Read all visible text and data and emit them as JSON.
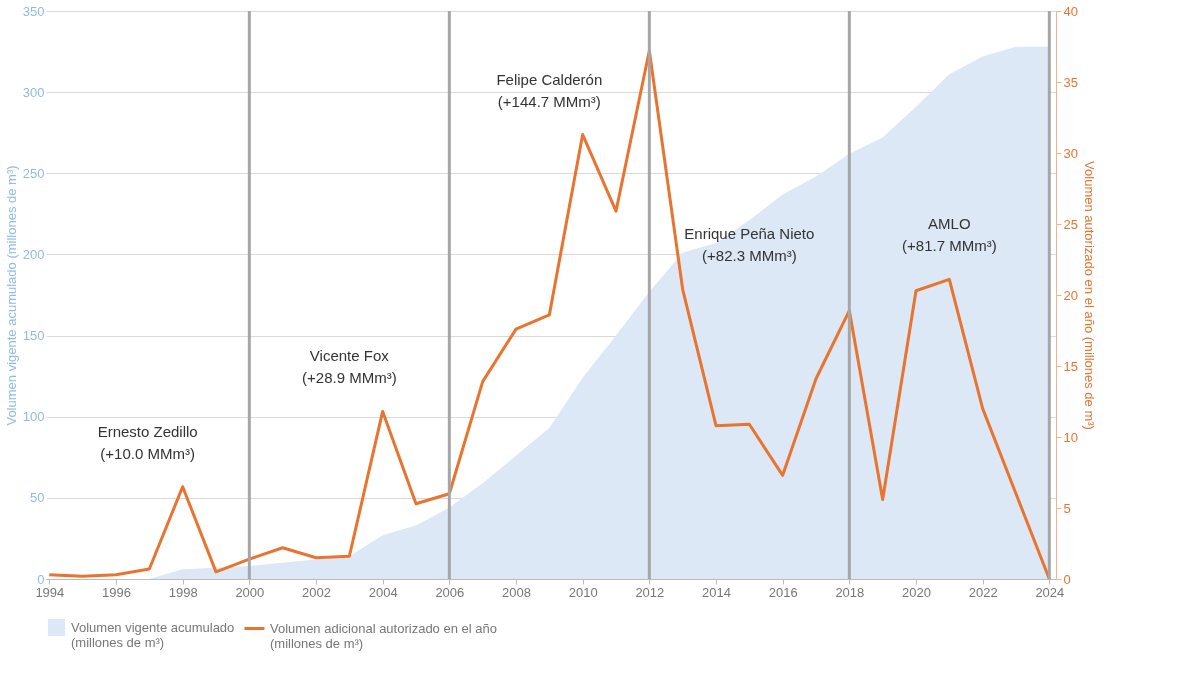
{
  "chart_data": {
    "type": "area",
    "x": [
      1994,
      1995,
      1996,
      1997,
      1998,
      1999,
      2000,
      2001,
      2002,
      2003,
      2004,
      2005,
      2006,
      2007,
      2008,
      2009,
      2010,
      2011,
      2012,
      2013,
      2014,
      2015,
      2016,
      2017,
      2018,
      2019,
      2020,
      2021,
      2022,
      2023,
      2024
    ],
    "series": [
      {
        "name": "Volumen vigente acumulado\n(millones de m³)",
        "color": "#dce8f5",
        "values": [
          0,
          0,
          0,
          0,
          6,
          7,
          8,
          10,
          12,
          14,
          27,
          33,
          44,
          59,
          76,
          93,
          124,
          150,
          177,
          201,
          207,
          221,
          237,
          248,
          262,
          272,
          291,
          311,
          322,
          328,
          328
        ]
      },
      {
        "name": "Volumen adicional autorizado en el año\n(millones de m³)",
        "type": "line",
        "axis": "y2",
        "color": "#e8742f",
        "values": [
          0.3,
          0.2,
          0.3,
          0.7,
          6.5,
          0.5,
          1.4,
          2.2,
          1.5,
          1.6,
          11.8,
          5.3,
          6.0,
          13.9,
          17.6,
          18.6,
          31.3,
          25.9,
          37.2,
          20.4,
          10.8,
          10.9,
          7.3,
          14.1,
          18.9,
          5.6,
          20.3,
          21.1,
          12.0,
          6.0,
          0
        ]
      }
    ],
    "ylabel": "Volumen vigente acumulado (millones de m³)",
    "y2label": "Volumen autorizado en el año (millones de m³)",
    "xlim": [
      1993.9,
      2024.2
    ],
    "xticks": [
      1994,
      1996,
      1998,
      2000,
      2002,
      2004,
      2006,
      2008,
      2010,
      2012,
      2014,
      2016,
      2018,
      2020,
      2022,
      2024
    ],
    "ylim": [
      0,
      350
    ],
    "yticks": [
      0,
      50,
      100,
      150,
      200,
      250,
      300,
      350
    ],
    "y2lim": [
      0,
      40
    ],
    "y2ticks": [
      0,
      5,
      10,
      15,
      20,
      25,
      30,
      35,
      40
    ],
    "ref_lines": [
      {
        "axis": "x",
        "value": 2000,
        "color": "#a6a6a6"
      },
      {
        "axis": "x",
        "value": 2006,
        "color": "#a6a6a6"
      },
      {
        "axis": "x",
        "value": 2012,
        "color": "#a6a6a6"
      },
      {
        "axis": "x",
        "value": 2018,
        "color": "#a6a6a6"
      },
      {
        "axis": "x",
        "value": 2024,
        "color": "#a6a6a6"
      }
    ],
    "annotations": [
      "Ernesto Zedillo\n(+10.0 MMm³)",
      "Vicente Fox\n(+28.9 MMm³)",
      "Felipe Calderón\n(+144.7 MMm³)",
      "Enrique Peña Nieto\n(+82.3 MMm³)",
      "AMLO\n(+81.7 MMm³)"
    ],
    "grid": "y",
    "legend": "bottom"
  }
}
